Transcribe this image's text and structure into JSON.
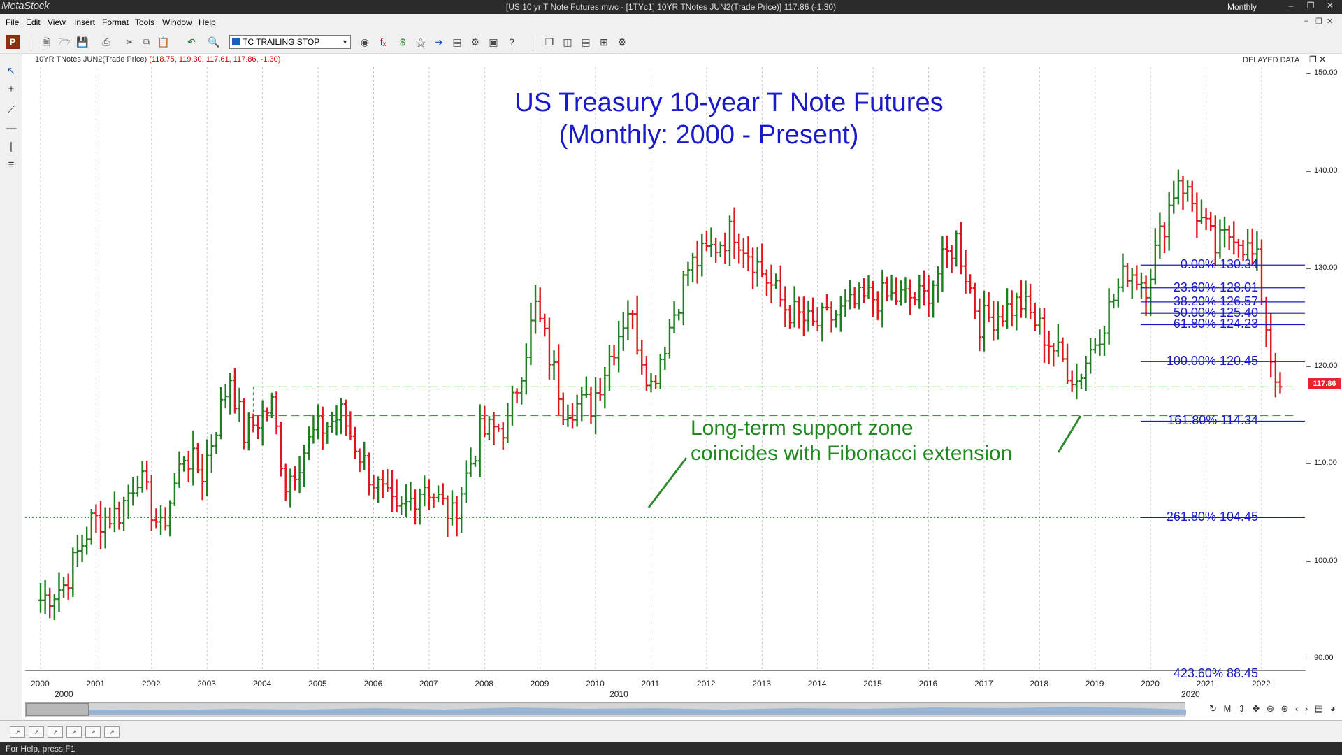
{
  "window": {
    "app_name": "MetaStock",
    "title": "[US 10 yr T Note Futures.mwc - [1TYc1] 10YR TNotes JUN2(Trade Price)]   117.86 (-1.30)",
    "period": "Monthly",
    "minimize": "–",
    "restore": "❐",
    "close": "✕"
  },
  "menu": [
    "File",
    "Edit",
    "View",
    "Insert",
    "Format",
    "Tools",
    "Window",
    "Help"
  ],
  "toolbar": {
    "expert_select": "TC TRAILING STOP"
  },
  "chart": {
    "security_label": "10YR TNotes JUN2(Trade Price)",
    "security_values": "(118.75, 119.30, 117.61, 117.86, -1.30)",
    "delayed": "DELAYED DATA",
    "last_price_tag": "117.86",
    "title_line1": "US Treasury 10-year T Note Futures",
    "title_line2": "(Monthly: 2000 - Present)",
    "annotation_line1": "Long-term support zone",
    "annotation_line2": "coincides with Fibonacci extension",
    "status": "For Help, press F1"
  },
  "chart_data": {
    "type": "ohlc",
    "title": "US Treasury 10-year T Note Futures",
    "subtitle": "(Monthly: 2000 - Present)",
    "ylim": [
      85,
      150
    ],
    "y_ticks": [
      "150.00",
      "140.00",
      "130.00",
      "120.00",
      "110.00",
      "100.00",
      "90.00"
    ],
    "x_ticks": [
      "2000",
      "2001",
      "2002",
      "2003",
      "2004",
      "2005",
      "2006",
      "2007",
      "2008",
      "2009",
      "2010",
      "2011",
      "2012",
      "2013",
      "2014",
      "2015",
      "2016",
      "2017",
      "2018",
      "2019",
      "2020",
      "2021",
      "2022"
    ],
    "x_ticks_secondary": [
      "2000",
      "2010",
      "2020"
    ],
    "colors": {
      "up": "#1e7d1e",
      "down": "#e0161c",
      "fib": "#1a1ac8",
      "support": "#2e8b2e"
    },
    "fibonacci": [
      {
        "label": "0.00% 130.34",
        "value": 130.34
      },
      {
        "label": "23.60% 128.01",
        "value": 128.01
      },
      {
        "label": "38.20% 126.57",
        "value": 126.57
      },
      {
        "label": "50.00% 125.40",
        "value": 125.4
      },
      {
        "label": "61.80% 124.23",
        "value": 124.23
      },
      {
        "label": "100.00% 120.45",
        "value": 120.45
      },
      {
        "label": "161.80% 114.34",
        "value": 114.34
      },
      {
        "label": "261.80% 104.45",
        "value": 104.45
      },
      {
        "label": "423.60% 88.45",
        "value": 88.45
      }
    ],
    "support_zone": [
      117.86,
      114.9
    ],
    "dotted_level": 104.45,
    "last_close": 117.86,
    "monthly_closes": [
      {
        "t": "2000-01",
        "c": 96
      },
      {
        "t": "2000-06",
        "c": 97.5
      },
      {
        "t": "2000-12",
        "c": 104
      },
      {
        "t": "2001-06",
        "c": 105
      },
      {
        "t": "2001-10",
        "c": 109
      },
      {
        "t": "2002-03",
        "c": 103
      },
      {
        "t": "2002-08",
        "c": 111
      },
      {
        "t": "2002-12",
        "c": 109
      },
      {
        "t": "2003-06",
        "c": 119
      },
      {
        "t": "2003-09",
        "c": 113
      },
      {
        "t": "2004-03",
        "c": 116
      },
      {
        "t": "2004-06",
        "c": 108
      },
      {
        "t": "2004-12",
        "c": 113
      },
      {
        "t": "2005-06",
        "c": 115
      },
      {
        "t": "2005-12",
        "c": 109
      },
      {
        "t": "2006-06",
        "c": 104.5
      },
      {
        "t": "2006-12",
        "c": 108
      },
      {
        "t": "2007-06",
        "c": 104.5
      },
      {
        "t": "2007-12",
        "c": 113
      },
      {
        "t": "2008-06",
        "c": 114
      },
      {
        "t": "2008-12",
        "c": 126
      },
      {
        "t": "2009-06",
        "c": 116
      },
      {
        "t": "2009-12",
        "c": 116
      },
      {
        "t": "2010-08",
        "c": 126
      },
      {
        "t": "2011-01",
        "c": 118
      },
      {
        "t": "2011-09",
        "c": 130
      },
      {
        "t": "2012-07",
        "c": 134
      },
      {
        "t": "2013-06",
        "c": 126
      },
      {
        "t": "2013-12",
        "c": 124
      },
      {
        "t": "2014-12",
        "c": 127
      },
      {
        "t": "2015-06",
        "c": 127
      },
      {
        "t": "2015-12",
        "c": 127
      },
      {
        "t": "2016-07",
        "c": 133
      },
      {
        "t": "2016-12",
        "c": 124.5
      },
      {
        "t": "2017-09",
        "c": 126.5
      },
      {
        "t": "2018-09",
        "c": 118.5
      },
      {
        "t": "2019-08",
        "c": 130
      },
      {
        "t": "2019-12",
        "c": 128.5
      },
      {
        "t": "2020-07",
        "c": 139.5
      },
      {
        "t": "2021-03",
        "c": 132
      },
      {
        "t": "2021-07",
        "c": 134
      },
      {
        "t": "2021-12",
        "c": 130.5
      },
      {
        "t": "2022-03",
        "c": 121
      },
      {
        "t": "2022-05",
        "c": 117.86
      }
    ]
  },
  "pages": [
    "↗",
    "↗",
    "↗",
    "↗",
    "↗",
    "↗"
  ]
}
